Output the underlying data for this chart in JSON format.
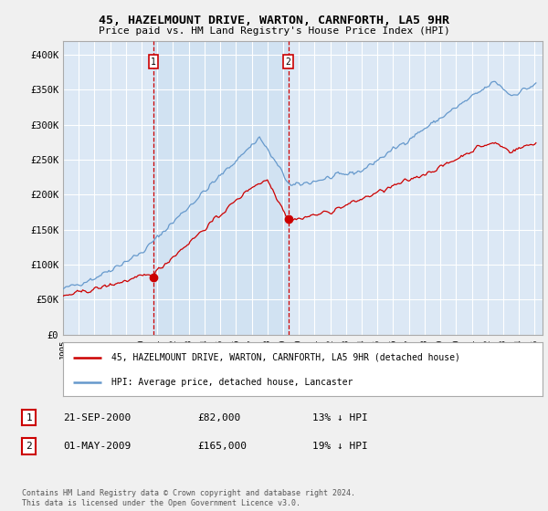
{
  "title": "45, HAZELMOUNT DRIVE, WARTON, CARNFORTH, LA5 9HR",
  "subtitle": "Price paid vs. HM Land Registry's House Price Index (HPI)",
  "background_color": "#f0f0f0",
  "plot_bg_color": "#dce8f5",
  "plot_bg_color2": "#e8eff8",
  "grid_color": "#ffffff",
  "ylim": [
    0,
    420000
  ],
  "yticks": [
    0,
    50000,
    100000,
    150000,
    200000,
    250000,
    300000,
    350000,
    400000
  ],
  "ytick_labels": [
    "£0",
    "£50K",
    "£100K",
    "£150K",
    "£200K",
    "£250K",
    "£300K",
    "£350K",
    "£400K"
  ],
  "legend_label_red": "45, HAZELMOUNT DRIVE, WARTON, CARNFORTH, LA5 9HR (detached house)",
  "legend_label_blue": "HPI: Average price, detached house, Lancaster",
  "red_color": "#cc0000",
  "blue_color": "#6699cc",
  "annotation1": [
    "1",
    "21-SEP-2000",
    "£82,000",
    "13% ↓ HPI"
  ],
  "annotation2": [
    "2",
    "01-MAY-2009",
    "£165,000",
    "19% ↓ HPI"
  ],
  "footer": "Contains HM Land Registry data © Crown copyright and database right 2024.\nThis data is licensed under the Open Government Licence v3.0.",
  "marker1_x": 2000.75,
  "marker1_y": 82000,
  "marker2_x": 2009.33,
  "marker2_y": 165000,
  "xlim_left": 1995,
  "xlim_right": 2025.5
}
